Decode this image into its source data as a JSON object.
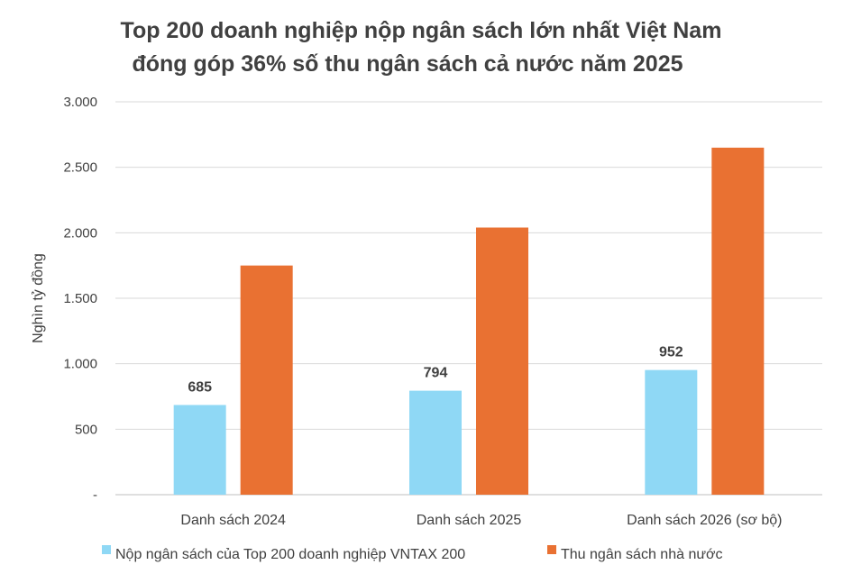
{
  "chart_data": {
    "type": "bar",
    "title_lines": [
      "Top 200 doanh nghiệp nộp ngân sách lớn nhất Việt Nam",
      "đóng góp 36% số thu ngân sách cả nước năm 2025"
    ],
    "xlabel": "",
    "ylabel": "Nghìn tỷ đồng",
    "ylim": [
      0,
      3000
    ],
    "y_ticks": [
      0,
      500,
      1000,
      1500,
      2000,
      2500,
      3000
    ],
    "y_tick_labels": [
      "-",
      "500",
      "1.000",
      "1.500",
      "2.000",
      "2.500",
      "3.000"
    ],
    "categories": [
      "Danh sách 2024",
      "Danh sách 2025",
      "Danh sách 2026 (sơ bộ)"
    ],
    "series": [
      {
        "name": "Nộp ngân sách của Top 200 doanh nghiệp VNTAX 200",
        "values": [
          685,
          794,
          952
        ],
        "color": "#8fd8f5",
        "data_labels": [
          "685",
          "794",
          "952"
        ]
      },
      {
        "name": "Thu ngân sách nhà nước",
        "values": [
          1750,
          2040,
          2650
        ],
        "color": "#e97132",
        "data_labels": null
      }
    ],
    "grid": true,
    "legend_position": "bottom"
  }
}
